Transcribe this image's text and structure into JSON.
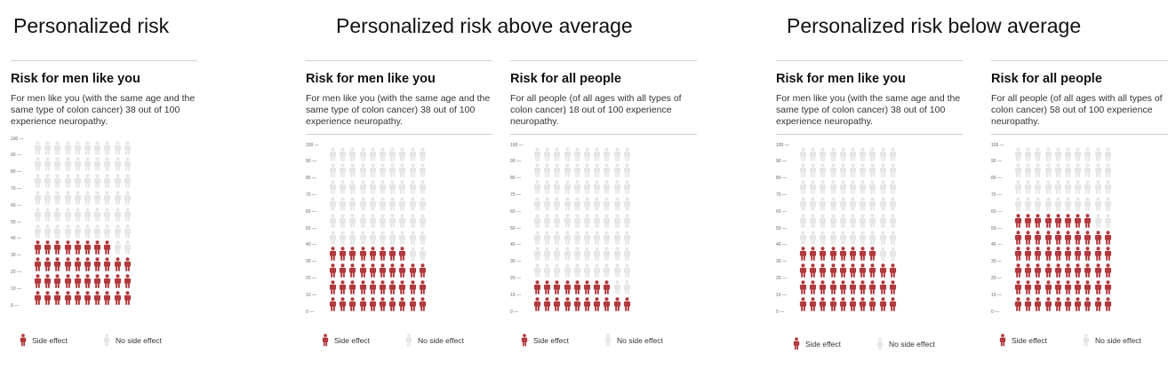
{
  "sections": [
    {
      "title": "Personalized risk"
    },
    {
      "title": "Personalized risk above average"
    },
    {
      "title": "Personalized risk below average"
    }
  ],
  "colors": {
    "side_effect": "#b2393d",
    "no_side_effect": "#e6e6e6"
  },
  "icons": {
    "person": "person-icon"
  },
  "panels": [
    {
      "heading": "Risk for men like you",
      "description": "For men like you (with the same age and the same type of colon cancer) 38 out of 100 experience neuropathy.",
      "risk": 38
    },
    {
      "heading": "Risk for men like you",
      "description": "For men like you (with the same age and the same type of colon cancer) 38 out of 100 experience neuropathy.",
      "risk": 38
    },
    {
      "heading": "Risk for all people",
      "description": "For all people (of all ages with all types of colon cancer) 18 out of 100 experience neuropathy.",
      "risk": 18
    },
    {
      "heading": "Risk for men like you",
      "description": "For men like you (with the same age and the same type of colon cancer) 38 out of 100 experience neuropathy.",
      "risk": 38
    },
    {
      "heading": "Risk for all people",
      "description": "For all people (of all ages with all types of colon cancer) 58 out of 100 experience neuropathy.",
      "risk": 58
    }
  ],
  "axis_ticks": [
    "100",
    "90",
    "80",
    "70",
    "60",
    "50",
    "40",
    "30",
    "20",
    "10",
    "0"
  ],
  "legend": {
    "side_effect": "Side effect",
    "no_side_effect": "No side effect"
  }
}
